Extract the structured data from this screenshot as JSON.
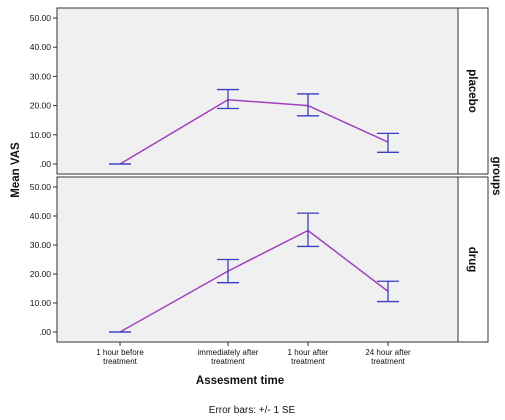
{
  "chart_data": {
    "type": "line",
    "xlabel": "Assesment time",
    "ylabel": "Mean VAS",
    "facet_label": "groups",
    "footnote": "Error bars: +/- 1 SE",
    "categories": [
      [
        "1 hour before",
        "treatment"
      ],
      [
        "immediately after",
        "treatment"
      ],
      [
        "1 hour after",
        "treatment"
      ],
      [
        "24 hour after",
        "treatment"
      ]
    ],
    "ylim": [
      0,
      50
    ],
    "yticks": [
      ".00",
      "10.00",
      "20.00",
      "30.00",
      "40.00",
      "50.00"
    ],
    "grid": false,
    "line_color": "#a040c0",
    "errorbar_color": "#3c3cc0",
    "panels": [
      {
        "name": "placebo",
        "values": [
          0,
          22,
          20,
          7.5
        ],
        "error_low": [
          0,
          19,
          16.5,
          4
        ],
        "error_high": [
          0,
          25.5,
          24,
          10.5
        ]
      },
      {
        "name": "drug",
        "values": [
          0,
          21,
          35,
          14
        ],
        "error_low": [
          0,
          17,
          29.5,
          10.5
        ],
        "error_high": [
          0,
          25,
          41,
          17.5
        ]
      }
    ]
  }
}
